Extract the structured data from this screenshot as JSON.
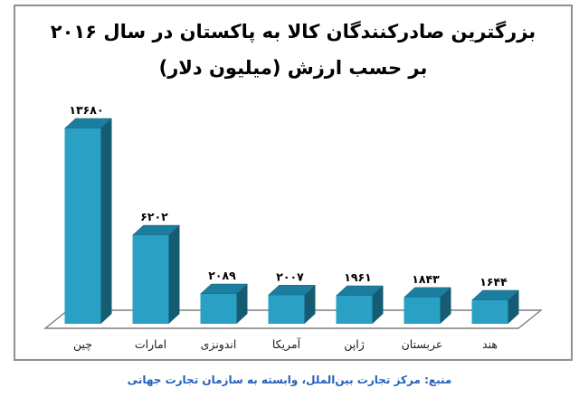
{
  "chart_data": {
    "type": "bar",
    "style": "3d-column",
    "title": "بزرگترین صادرکنندگان کالا به پاکستان در سال ۲۰۱۶ بر حسب ارزش (میلیون دلار)",
    "title_lines": [
      "بزرگترین صادرکنندگان کالا به پاکستان در سال ۲۰۱۶",
      "بر حسب ارزش (میلیون دلار)"
    ],
    "unit": "میلیون دلار",
    "year_label": "۲۰۱۶",
    "categories": [
      "چین",
      "امارات",
      "اندونزی",
      "آمریکا",
      "ژاپن",
      "عربستان",
      "هند"
    ],
    "values": [
      13680,
      6202,
      2089,
      2007,
      1961,
      1843,
      1644
    ],
    "value_labels": [
      "۱۳۶۸۰",
      "۶۲۰۲",
      "۲۰۸۹",
      "۲۰۰۷",
      "۱۹۶۱",
      "۱۸۴۳",
      "۱۶۴۴"
    ],
    "ylim": [
      0,
      14000
    ],
    "grid": false,
    "legend": false,
    "colors": {
      "bar_front": "#2AA0C5",
      "bar_top": "#1B7E9E",
      "bar_side": "#155B72",
      "floor_line": "#7F7F7F",
      "frame_border": "#909090",
      "value_label": "#000000",
      "category_label": "#1A1A1A"
    }
  },
  "source": {
    "label": "منبع: مرکز تجارت بین‌الملل، وابسته به سازمان تجارت جهانی",
    "color": "#2460B8"
  }
}
